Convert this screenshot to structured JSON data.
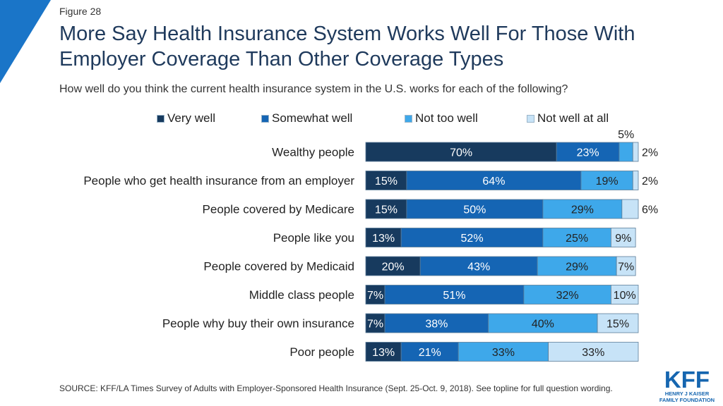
{
  "figure_label": "Figure 28",
  "title": "More Say Health Insurance System Works Well For Those With Employer Coverage Than Other Coverage Types",
  "subtitle": "How well do you think the current health insurance system in the U.S. works for each of the following?",
  "source": "SOURCE: KFF/LA Times Survey of Adults with Employer-Sponsored Health Insurance  (Sept. 25-Oct. 9, 2018). See topline for full question wording.",
  "logo": {
    "text": "KFF",
    "line1": "HENRY J KAISER",
    "line2": "FAMILY FOUNDATION",
    "color": "#1666b0"
  },
  "colors": {
    "corner": "#1a75c8",
    "very_well": "#173a5e",
    "somewhat_well": "#1565b4",
    "not_too_well": "#3ea8ea",
    "not_well_at_all": "#c7e3f7"
  },
  "chart_data": {
    "type": "bar",
    "orientation": "horizontal",
    "stacked": true,
    "xlim": [
      0,
      100
    ],
    "legend_position": "top",
    "categories": [
      "Wealthy people",
      "People who get health insurance from an employer",
      "People covered by Medicare",
      "People like you",
      "People covered by Medicaid",
      "Middle class people",
      "People why buy their own insurance",
      "Poor people"
    ],
    "series": [
      {
        "name": "Very well",
        "color": "#173a5e",
        "values": [
          70,
          15,
          15,
          13,
          20,
          7,
          7,
          13
        ]
      },
      {
        "name": "Somewhat well",
        "color": "#1565b4",
        "values": [
          23,
          64,
          50,
          52,
          43,
          51,
          38,
          21
        ]
      },
      {
        "name": "Not too well",
        "color": "#3ea8ea",
        "values": [
          5,
          19,
          29,
          25,
          29,
          32,
          40,
          33
        ]
      },
      {
        "name": "Not well at all",
        "color": "#c7e3f7",
        "values": [
          2,
          2,
          6,
          9,
          7,
          10,
          15,
          33
        ]
      }
    ],
    "data_labels": [
      [
        "70%",
        "23%",
        "5%",
        "2%"
      ],
      [
        "15%",
        "64%",
        "19%",
        "2%"
      ],
      [
        "15%",
        "50%",
        "29%",
        "6%"
      ],
      [
        "13%",
        "52%",
        "25%",
        "9%"
      ],
      [
        "20%",
        "43%",
        "29%",
        "7%"
      ],
      [
        "7%",
        "51%",
        "32%",
        "10%"
      ],
      [
        "7%",
        "38%",
        "40%",
        "15%"
      ],
      [
        "13%",
        "21%",
        "33%",
        "33%"
      ]
    ]
  }
}
